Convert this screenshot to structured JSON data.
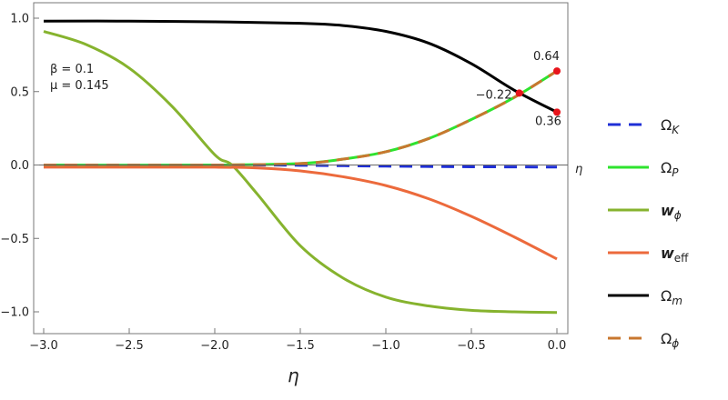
{
  "chart_data": {
    "type": "line",
    "xlabel": "η",
    "axis_eta_label": "η",
    "xlim": [
      -3.0,
      0.0
    ],
    "ylim": [
      -1.05,
      1.05
    ],
    "x_ticks": [
      "-3.0",
      "-2.5",
      "-2.0",
      "-1.5",
      "-1.0",
      "-0.5",
      "0.0"
    ],
    "y_ticks": [
      "1.0",
      "0.5",
      "0.0",
      "-0.5",
      "-1.0"
    ],
    "legend_position": "right",
    "grid": false,
    "parameters": {
      "beta": "β = 0.1",
      "mu": "μ = 0.145"
    },
    "annotations": [
      {
        "text": "0.64",
        "x": 0.0,
        "y": 0.64
      },
      {
        "text": "−0.22",
        "x": -0.22,
        "y": 0.49
      },
      {
        "text": "0.36",
        "x": 0.0,
        "y": 0.36
      }
    ],
    "highlight_points": [
      {
        "x": 0.0,
        "y": 0.64
      },
      {
        "x": -0.22,
        "y": 0.49
      },
      {
        "x": 0.0,
        "y": 0.36
      }
    ],
    "series": [
      {
        "name": "Ω",
        "sub": "K",
        "color": "#1f2fd6",
        "dash": "dash",
        "x": [
          -3.0,
          -2.0,
          -1.5,
          -1.0,
          -0.5,
          0.0
        ],
        "y": [
          0.0,
          0.0,
          -0.002,
          -0.008,
          -0.012,
          -0.014
        ]
      },
      {
        "name": "Ω",
        "sub": "P",
        "color": "#2ee32e",
        "dash": "solid",
        "x": [
          -3.0,
          -2.0,
          -1.5,
          -1.25,
          -1.0,
          -0.75,
          -0.5,
          -0.25,
          0.0
        ],
        "y": [
          0.0,
          0.0,
          0.01,
          0.04,
          0.09,
          0.18,
          0.31,
          0.46,
          0.64
        ]
      },
      {
        "name": "w",
        "sub": "ϕ",
        "color": "#86b32e",
        "dash": "solid",
        "x": [
          -3.0,
          -2.75,
          -2.5,
          -2.25,
          -2.0,
          -1.9,
          -1.75,
          -1.5,
          -1.25,
          -1.0,
          -0.75,
          -0.5,
          -0.25,
          0.0
        ],
        "y": [
          0.91,
          0.82,
          0.66,
          0.4,
          0.07,
          0.0,
          -0.2,
          -0.55,
          -0.77,
          -0.9,
          -0.96,
          -0.99,
          -1.0,
          -1.005
        ]
      },
      {
        "name": "w",
        "sub": "eff",
        "color": "#ec6a3c",
        "dash": "solid",
        "x": [
          -3.0,
          -2.5,
          -2.0,
          -1.75,
          -1.5,
          -1.25,
          -1.0,
          -0.75,
          -0.5,
          -0.25,
          0.0
        ],
        "y": [
          -0.015,
          -0.015,
          -0.015,
          -0.02,
          -0.04,
          -0.08,
          -0.14,
          -0.23,
          -0.35,
          -0.49,
          -0.64
        ]
      },
      {
        "name": "Ω",
        "sub": "m",
        "color": "#000000",
        "dash": "solid",
        "x": [
          -3.0,
          -2.5,
          -2.0,
          -1.5,
          -1.25,
          -1.0,
          -0.75,
          -0.5,
          -0.25,
          0.0
        ],
        "y": [
          0.98,
          0.98,
          0.975,
          0.965,
          0.95,
          0.91,
          0.83,
          0.69,
          0.51,
          0.36
        ]
      },
      {
        "name": "Ω",
        "sub": "ϕ",
        "color": "#c8772f",
        "dash": "dash",
        "x": [
          -3.0,
          -2.0,
          -1.5,
          -1.25,
          -1.0,
          -0.75,
          -0.5,
          -0.25,
          0.0
        ],
        "y": [
          0.0,
          0.0,
          0.01,
          0.04,
          0.09,
          0.18,
          0.31,
          0.46,
          0.64
        ]
      }
    ]
  }
}
